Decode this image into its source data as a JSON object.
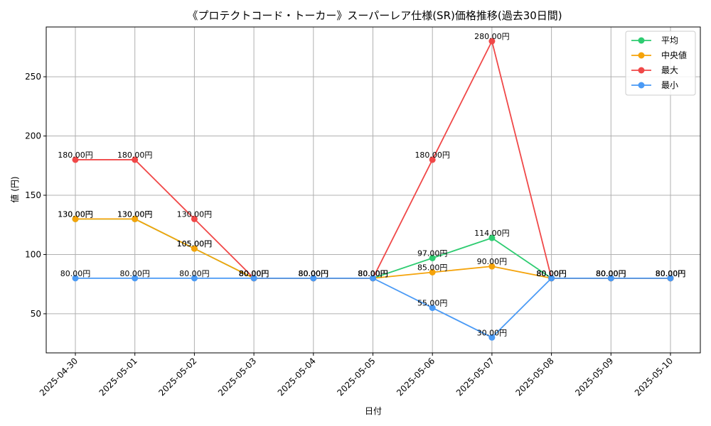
{
  "chart_data": {
    "type": "line",
    "title": "《プロテクトコード・トーカー》スーパーレア仕様(SR)価格推移(過去30日間)",
    "xlabel": "日付",
    "ylabel": "値 (円)",
    "ylim": [
      17,
      292
    ],
    "yticks": [
      50,
      100,
      150,
      200,
      250
    ],
    "grid": true,
    "legend_position": "top-right",
    "categories": [
      "2025-04-30",
      "2025-05-01",
      "2025-05-02",
      "2025-05-03",
      "2025-05-04",
      "2025-05-05",
      "2025-05-06",
      "2025-05-07",
      "2025-05-08",
      "2025-05-09",
      "2025-05-10"
    ],
    "series": [
      {
        "name": "平均",
        "color": "#2ecc71",
        "values": [
          130,
          130,
          105,
          80,
          80,
          80,
          97,
          114,
          80,
          80,
          80
        ]
      },
      {
        "name": "中央値",
        "color": "#f5a30a",
        "values": [
          130,
          130,
          105,
          80,
          80,
          80,
          85,
          90,
          80,
          80,
          80
        ]
      },
      {
        "name": "最大",
        "color": "#f04848",
        "values": [
          180,
          180,
          130,
          80,
          80,
          80,
          180,
          280,
          80,
          80,
          80
        ]
      },
      {
        "name": "最小",
        "color": "#4a9af5",
        "values": [
          80,
          80,
          80,
          80,
          80,
          80,
          55,
          30,
          80,
          80,
          80
        ]
      }
    ],
    "label_suffix": "円",
    "label_decimals": 2
  }
}
